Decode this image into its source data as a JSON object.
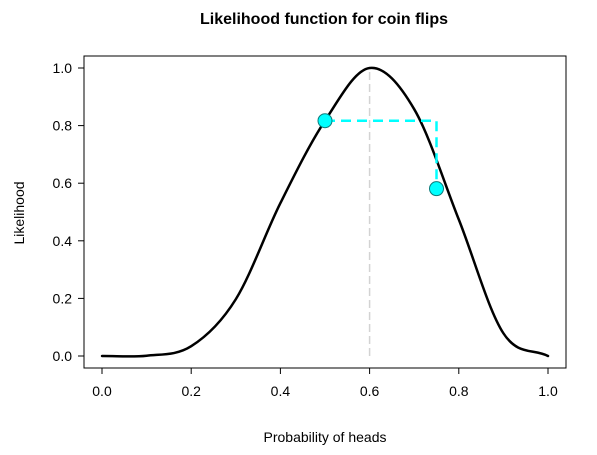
{
  "chart_data": {
    "type": "line",
    "title": "Likelihood function for coin flips",
    "xlabel": "Probability of heads",
    "ylabel": "Likelihood",
    "xlim": [
      0.0,
      1.0
    ],
    "ylim": [
      0.0,
      1.0
    ],
    "x_ticks": [
      "0.0",
      "0.2",
      "0.4",
      "0.6",
      "0.8",
      "1.0"
    ],
    "y_ticks": [
      "0.0",
      "0.2",
      "0.4",
      "0.6",
      "0.8",
      "1.0"
    ],
    "grid": false,
    "series": [
      {
        "type": "line",
        "color": "#000000",
        "x": [
          0.0,
          0.1,
          0.2,
          0.3,
          0.4,
          0.5,
          0.6,
          0.7,
          0.8,
          0.9,
          1.0
        ],
        "y": [
          0.0,
          0.001,
          0.034,
          0.197,
          0.531,
          0.817,
          1.0,
          0.857,
          0.474,
          0.079,
          0.0
        ]
      },
      {
        "type": "reference-line",
        "color": "#d3d3d3",
        "x": [
          0.6,
          0.6
        ],
        "y": [
          0.0,
          1.0
        ]
      },
      {
        "type": "dashed-line",
        "color": "#00ffff",
        "x": [
          0.5,
          0.75,
          0.75
        ],
        "y": [
          0.817,
          0.817,
          0.581
        ]
      },
      {
        "type": "scatter",
        "color": "#00ffff",
        "x": [
          0.5,
          0.75
        ],
        "y": [
          0.817,
          0.581
        ]
      }
    ]
  }
}
